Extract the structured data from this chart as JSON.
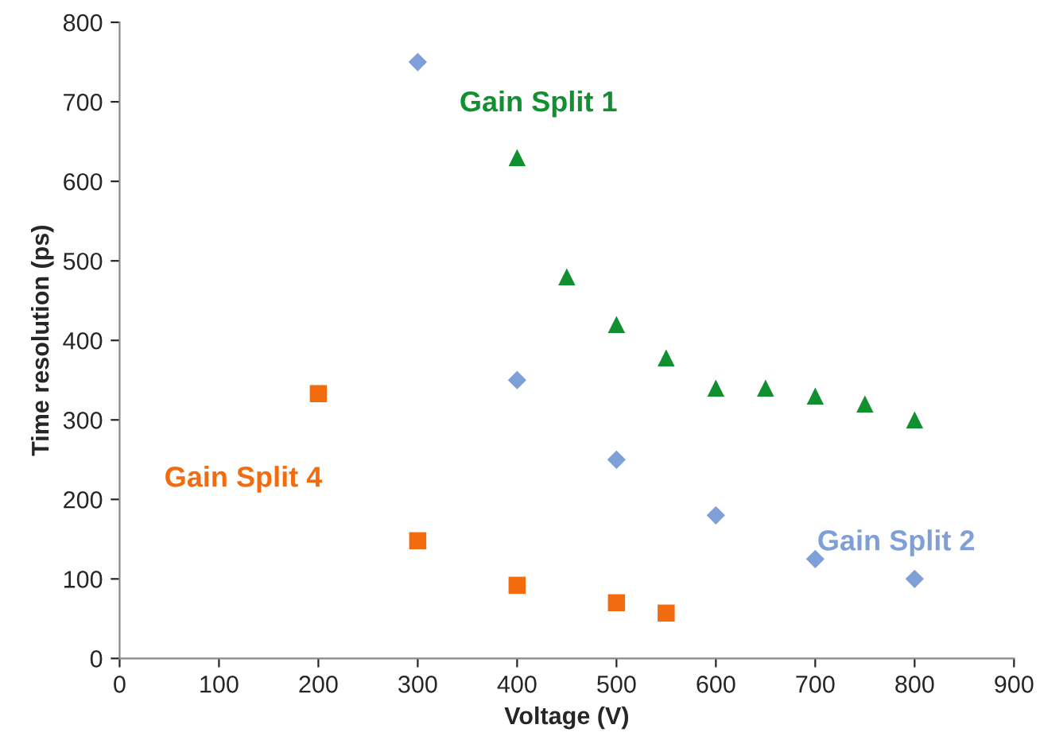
{
  "chart_data": {
    "type": "scatter",
    "xlabel": "Voltage (V)",
    "ylabel": "Time resolution (ps)",
    "xlim": [
      0,
      900
    ],
    "xticks": [
      0,
      100,
      200,
      300,
      400,
      500,
      600,
      700,
      800,
      900
    ],
    "ylim": [
      0,
      800
    ],
    "yticks": [
      0,
      100,
      200,
      300,
      400,
      500,
      600,
      700,
      800
    ],
    "grid": false,
    "legend": false,
    "series": [
      {
        "name": "Gain Split 1",
        "color": "#11902f",
        "marker": "triangle",
        "x": [
          400,
          450,
          500,
          550,
          600,
          650,
          700,
          750,
          800
        ],
        "values": [
          630,
          480,
          420,
          378,
          340,
          340,
          330,
          320,
          300
        ]
      },
      {
        "name": "Gain Split 2",
        "color": "#7f9fd8",
        "marker": "diamond",
        "x": [
          300,
          400,
          500,
          600,
          700,
          800
        ],
        "values": [
          750,
          350,
          250,
          180,
          125,
          100
        ]
      },
      {
        "name": "Gain Split 4",
        "color": "#f26c0f",
        "marker": "square",
        "x": [
          200,
          300,
          400,
          500,
          550
        ],
        "values": [
          333,
          148,
          92,
          70,
          57
        ]
      }
    ]
  }
}
